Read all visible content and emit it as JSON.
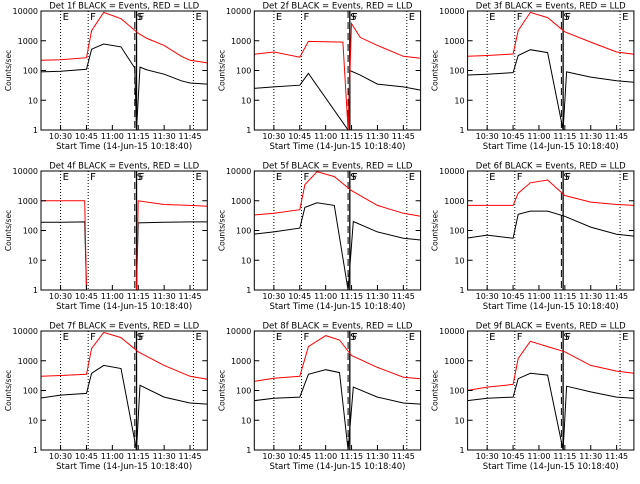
{
  "figure": {
    "ylabel": "Counts/sec",
    "xlabel": "Start Time (14-Jun-15 10:18:40)",
    "x_ticks": [
      "10:30",
      "10:45",
      "11:00",
      "11:15",
      "11:30",
      "11:45"
    ],
    "y_ticks": [
      "1",
      "10",
      "100",
      "1000",
      "10000"
    ],
    "colors": {
      "events": "#000000",
      "lld": "#ff0000"
    }
  },
  "chart_data": [
    {
      "type": "line",
      "title": "Det 1f BLACK = Events, RED = LLD",
      "ylog": true,
      "ylim": [
        1,
        10000
      ],
      "xlim": [
        "10:18:40",
        "11:55:00"
      ],
      "markers": [
        "E",
        "F",
        "S",
        "F",
        "E"
      ],
      "series": [
        {
          "name": "Events",
          "color": "#000000",
          "points": [
            [
              "10:18",
              90
            ],
            [
              "10:30",
              95
            ],
            [
              "10:45",
              110
            ],
            [
              "10:48",
              520
            ],
            [
              "10:55",
              780
            ],
            [
              "11:05",
              620
            ],
            [
              "11:13",
              120
            ],
            [
              "11:14",
              1
            ],
            [
              "11:16",
              130
            ],
            [
              "11:20",
              105
            ],
            [
              "11:30",
              75
            ],
            [
              "11:40",
              45
            ],
            [
              "11:45",
              38
            ],
            [
              "11:55",
              35
            ]
          ]
        },
        {
          "name": "LLD",
          "color": "#ff0000",
          "points": [
            [
              "10:18",
              220
            ],
            [
              "10:30",
              230
            ],
            [
              "10:45",
              270
            ],
            [
              "10:48",
              2200
            ],
            [
              "10:55",
              9000
            ],
            [
              "11:05",
              5500
            ],
            [
              "11:15",
              1800
            ],
            [
              "11:20",
              1200
            ],
            [
              "11:30",
              700
            ],
            [
              "11:40",
              300
            ],
            [
              "11:45",
              220
            ],
            [
              "11:55",
              180
            ]
          ]
        }
      ]
    },
    {
      "type": "line",
      "title": "Det 2f BLACK = Events, RED = LLD",
      "ylog": true,
      "ylim": [
        1,
        10000
      ],
      "xlim": [
        "10:18:40",
        "11:55:00"
      ],
      "markers": [
        "E",
        "F",
        "S",
        "F",
        "E"
      ],
      "series": [
        {
          "name": "Events",
          "color": "#000000",
          "points": [
            [
              "10:18",
              25
            ],
            [
              "10:30",
              28
            ],
            [
              "10:45",
              32
            ],
            [
              "10:50",
              80
            ],
            [
              "11:13",
              1
            ],
            [
              "11:14",
              100
            ],
            [
              "11:20",
              70
            ],
            [
              "11:30",
              35
            ],
            [
              "11:45",
              28
            ],
            [
              "11:55",
              22
            ]
          ]
        },
        {
          "name": "LLD",
          "color": "#ff0000",
          "points": [
            [
              "10:18",
              350
            ],
            [
              "10:30",
              420
            ],
            [
              "10:45",
              280
            ],
            [
              "10:50",
              950
            ],
            [
              "11:10",
              900
            ],
            [
              "11:13",
              1
            ],
            [
              "11:15",
              3800
            ],
            [
              "11:20",
              1300
            ],
            [
              "11:30",
              700
            ],
            [
              "11:45",
              300
            ],
            [
              "11:55",
              260
            ]
          ]
        }
      ]
    },
    {
      "type": "line",
      "title": "Det 3f BLACK = Events, RED = LLD",
      "ylog": true,
      "ylim": [
        1,
        10000
      ],
      "xlim": [
        "10:18:40",
        "11:55:00"
      ],
      "markers": [
        "E",
        "F",
        "S",
        "F",
        "E"
      ],
      "series": [
        {
          "name": "Events",
          "color": "#000000",
          "points": [
            [
              "10:18",
              70
            ],
            [
              "10:30",
              75
            ],
            [
              "10:45",
              85
            ],
            [
              "10:48",
              320
            ],
            [
              "10:55",
              500
            ],
            [
              "11:05",
              400
            ],
            [
              "11:14",
              1
            ],
            [
              "11:16",
              90
            ],
            [
              "11:30",
              60
            ],
            [
              "11:45",
              45
            ],
            [
              "11:55",
              40
            ]
          ]
        },
        {
          "name": "LLD",
          "color": "#ff0000",
          "points": [
            [
              "10:18",
              300
            ],
            [
              "10:30",
              320
            ],
            [
              "10:45",
              360
            ],
            [
              "10:48",
              2200
            ],
            [
              "10:55",
              9000
            ],
            [
              "11:05",
              6000
            ],
            [
              "11:15",
              2000
            ],
            [
              "11:30",
              900
            ],
            [
              "11:45",
              420
            ],
            [
              "11:55",
              350
            ]
          ]
        }
      ]
    },
    {
      "type": "line",
      "title": "Det 4f BLACK = Events, RED = LLD",
      "ylog": true,
      "ylim": [
        1,
        10000
      ],
      "xlim": [
        "10:18:40",
        "11:55:00"
      ],
      "markers": [
        "E",
        "F",
        "S",
        "F",
        "E"
      ],
      "series": [
        {
          "name": "Events",
          "color": "#000000",
          "points": [
            [
              "10:18",
              190
            ],
            [
              "10:30",
              190
            ],
            [
              "10:44",
              195
            ],
            [
              "10:45",
              1
            ],
            [
              "11:14",
              1
            ],
            [
              "11:15",
              180
            ],
            [
              "11:30",
              190
            ],
            [
              "11:45",
              195
            ],
            [
              "11:55",
              195
            ]
          ]
        },
        {
          "name": "LLD",
          "color": "#ff0000",
          "points": [
            [
              "10:18",
              1000
            ],
            [
              "10:30",
              1000
            ],
            [
              "10:44",
              1000
            ],
            [
              "10:45",
              1
            ],
            [
              "11:14",
              1
            ],
            [
              "11:15",
              1000
            ],
            [
              "11:30",
              750
            ],
            [
              "11:45",
              700
            ],
            [
              "11:55",
              650
            ]
          ]
        }
      ]
    },
    {
      "type": "line",
      "title": "Det 5f BLACK = Events, RED = LLD",
      "ylog": true,
      "ylim": [
        1,
        10000
      ],
      "xlim": [
        "10:18:40",
        "11:55:00"
      ],
      "markers": [
        "E",
        "F",
        "S",
        "F",
        "E"
      ],
      "series": [
        {
          "name": "Events",
          "color": "#000000",
          "points": [
            [
              "10:18",
              75
            ],
            [
              "10:30",
              90
            ],
            [
              "10:45",
              120
            ],
            [
              "10:48",
              600
            ],
            [
              "10:55",
              850
            ],
            [
              "11:05",
              700
            ],
            [
              "11:13",
              1
            ],
            [
              "11:16",
              200
            ],
            [
              "11:30",
              90
            ],
            [
              "11:45",
              55
            ],
            [
              "11:55",
              48
            ]
          ]
        },
        {
          "name": "LLD",
          "color": "#ff0000",
          "points": [
            [
              "10:18",
              330
            ],
            [
              "10:30",
              380
            ],
            [
              "10:45",
              500
            ],
            [
              "10:48",
              3500
            ],
            [
              "10:55",
              9500
            ],
            [
              "11:05",
              6500
            ],
            [
              "11:15",
              2200
            ],
            [
              "11:30",
              700
            ],
            [
              "11:45",
              380
            ],
            [
              "11:55",
              300
            ]
          ]
        }
      ]
    },
    {
      "type": "line",
      "title": "Det 6f BLACK = Events, RED = LLD",
      "ylog": true,
      "ylim": [
        1,
        10000
      ],
      "xlim": [
        "10:18:40",
        "11:55:00"
      ],
      "markers": [
        "E",
        "F",
        "S",
        "F",
        "E"
      ],
      "series": [
        {
          "name": "Events",
          "color": "#000000",
          "points": [
            [
              "10:18",
              55
            ],
            [
              "10:30",
              70
            ],
            [
              "10:45",
              55
            ],
            [
              "10:48",
              350
            ],
            [
              "10:55",
              450
            ],
            [
              "11:05",
              450
            ],
            [
              "11:15",
              300
            ],
            [
              "11:30",
              130
            ],
            [
              "11:45",
              75
            ],
            [
              "11:55",
              65
            ]
          ]
        },
        {
          "name": "LLD",
          "color": "#ff0000",
          "points": [
            [
              "10:18",
              700
            ],
            [
              "10:30",
              700
            ],
            [
              "10:45",
              700
            ],
            [
              "10:48",
              1800
            ],
            [
              "10:55",
              4000
            ],
            [
              "11:05",
              5000
            ],
            [
              "11:15",
              1500
            ],
            [
              "11:30",
              900
            ],
            [
              "11:45",
              750
            ],
            [
              "11:55",
              700
            ]
          ]
        }
      ]
    },
    {
      "type": "line",
      "title": "Det 7f BLACK = Events, RED = LLD",
      "ylog": true,
      "ylim": [
        1,
        10000
      ],
      "xlim": [
        "10:18:40",
        "11:55:00"
      ],
      "markers": [
        "E",
        "F",
        "S",
        "F",
        "E"
      ],
      "series": [
        {
          "name": "Events",
          "color": "#000000",
          "points": [
            [
              "10:18",
              55
            ],
            [
              "10:30",
              70
            ],
            [
              "10:45",
              80
            ],
            [
              "10:48",
              380
            ],
            [
              "10:55",
              700
            ],
            [
              "11:05",
              550
            ],
            [
              "11:14",
              1
            ],
            [
              "11:16",
              150
            ],
            [
              "11:30",
              60
            ],
            [
              "11:45",
              38
            ],
            [
              "11:55",
              35
            ]
          ]
        },
        {
          "name": "LLD",
          "color": "#ff0000",
          "points": [
            [
              "10:18",
              300
            ],
            [
              "10:30",
              320
            ],
            [
              "10:45",
              350
            ],
            [
              "10:48",
              2600
            ],
            [
              "10:55",
              9000
            ],
            [
              "11:05",
              6000
            ],
            [
              "11:15",
              2000
            ],
            [
              "11:30",
              700
            ],
            [
              "11:45",
              300
            ],
            [
              "11:55",
              240
            ]
          ]
        }
      ]
    },
    {
      "type": "line",
      "title": "Det 8f BLACK = Events, RED = LLD",
      "ylog": true,
      "ylim": [
        1,
        10000
      ],
      "xlim": [
        "10:18:40",
        "11:55:00"
      ],
      "markers": [
        "E",
        "F",
        "S",
        "F",
        "E"
      ],
      "series": [
        {
          "name": "Events",
          "color": "#000000",
          "points": [
            [
              "10:18",
              45
            ],
            [
              "10:30",
              55
            ],
            [
              "10:45",
              60
            ],
            [
              "10:50",
              350
            ],
            [
              "11:00",
              500
            ],
            [
              "11:08",
              400
            ],
            [
              "11:13",
              1
            ],
            [
              "11:16",
              130
            ],
            [
              "11:30",
              60
            ],
            [
              "11:45",
              38
            ],
            [
              "11:55",
              35
            ]
          ]
        },
        {
          "name": "LLD",
          "color": "#ff0000",
          "points": [
            [
              "10:18",
              200
            ],
            [
              "10:30",
              260
            ],
            [
              "10:45",
              300
            ],
            [
              "10:50",
              3000
            ],
            [
              "11:00",
              7000
            ],
            [
              "11:08",
              5000
            ],
            [
              "11:15",
              1500
            ],
            [
              "11:30",
              600
            ],
            [
              "11:45",
              280
            ],
            [
              "11:55",
              250
            ]
          ]
        }
      ]
    },
    {
      "type": "line",
      "title": "Det 9f BLACK = Events, RED = LLD",
      "ylog": true,
      "ylim": [
        1,
        10000
      ],
      "xlim": [
        "10:18:40",
        "11:55:00"
      ],
      "markers": [
        "E",
        "F",
        "S",
        "F",
        "E"
      ],
      "series": [
        {
          "name": "Events",
          "color": "#000000",
          "points": [
            [
              "10:18",
              45
            ],
            [
              "10:30",
              55
            ],
            [
              "10:45",
              60
            ],
            [
              "10:48",
              250
            ],
            [
              "10:55",
              380
            ],
            [
              "11:05",
              330
            ],
            [
              "11:14",
              1
            ],
            [
              "11:16",
              140
            ],
            [
              "11:30",
              90
            ],
            [
              "11:45",
              60
            ],
            [
              "11:55",
              55
            ]
          ]
        },
        {
          "name": "LLD",
          "color": "#ff0000",
          "points": [
            [
              "10:18",
              100
            ],
            [
              "10:30",
              130
            ],
            [
              "10:45",
              160
            ],
            [
              "10:48",
              1200
            ],
            [
              "10:55",
              4500
            ],
            [
              "11:05",
              3000
            ],
            [
              "11:15",
              2000
            ],
            [
              "11:30",
              700
            ],
            [
              "11:45",
              450
            ],
            [
              "11:55",
              380
            ]
          ]
        }
      ]
    }
  ]
}
